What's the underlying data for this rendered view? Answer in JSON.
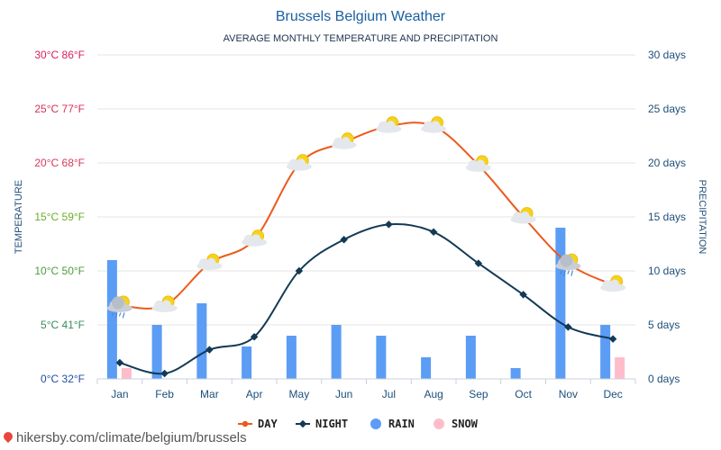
{
  "chart_data": {
    "type": "bar+line",
    "title": "Brussels Belgium Weather",
    "subtitle": "AVERAGE MONTHLY TEMPERATURE AND PRECIPITATION",
    "left_axis_title": "TEMPERATURE",
    "right_axis_title": "PRECIPITATION",
    "categories": [
      "Jan",
      "Feb",
      "Mar",
      "Apr",
      "May",
      "Jun",
      "Jul",
      "Aug",
      "Sep",
      "Oct",
      "Nov",
      "Dec"
    ],
    "left_axis": {
      "range": [
        0,
        30
      ],
      "ticks": [
        {
          "value": 0,
          "label": "0°C 32°F",
          "color": "#1f4ea3"
        },
        {
          "value": 5,
          "label": "5°C 41°F",
          "color": "#3a8c5a"
        },
        {
          "value": 10,
          "label": "10°C 50°F",
          "color": "#4a9e3a"
        },
        {
          "value": 15,
          "label": "15°C 59°F",
          "color": "#6aae2a"
        },
        {
          "value": 20,
          "label": "20°C 68°F",
          "color": "#d83a5a"
        },
        {
          "value": 25,
          "label": "25°C 77°F",
          "color": "#d8305a"
        },
        {
          "value": 30,
          "label": "30°C 86°F",
          "color": "#d82060"
        }
      ]
    },
    "right_axis": {
      "range": [
        0,
        30
      ],
      "ticks": [
        {
          "value": 0,
          "label": "0 days"
        },
        {
          "value": 5,
          "label": "5 days"
        },
        {
          "value": 10,
          "label": "10 days"
        },
        {
          "value": 15,
          "label": "15 days"
        },
        {
          "value": 20,
          "label": "20 days"
        },
        {
          "value": 25,
          "label": "25 days"
        },
        {
          "value": 30,
          "label": "30 days"
        }
      ]
    },
    "series": [
      {
        "name": "DAY",
        "kind": "line",
        "axis": "left",
        "color": "#ec5a1c",
        "values": [
          6.8,
          6.8,
          10.7,
          12.9,
          19.9,
          21.9,
          23.4,
          23.4,
          19.8,
          15.0,
          10.7,
          8.7
        ]
      },
      {
        "name": "NIGHT",
        "kind": "line",
        "axis": "left",
        "color": "#123a55",
        "values": [
          1.5,
          0.5,
          2.7,
          3.9,
          10.0,
          12.9,
          14.3,
          13.6,
          10.7,
          7.8,
          4.8,
          3.7
        ]
      },
      {
        "name": "RAIN",
        "kind": "bar",
        "axis": "right",
        "color": "#5b9cf5",
        "values": [
          11,
          5,
          7,
          3,
          4,
          5,
          4,
          2,
          4,
          1,
          14,
          5
        ]
      },
      {
        "name": "SNOW",
        "kind": "bar",
        "axis": "right",
        "color": "#ffbccb",
        "values": [
          1,
          0,
          0,
          0,
          0,
          0,
          0,
          0,
          0,
          0,
          0,
          2
        ]
      }
    ],
    "weather_icons": [
      "cloud-sun-rain",
      "cloud-sun",
      "cloud-sun",
      "cloud-sun",
      "cloud-sun",
      "cloud-sun",
      "cloud-sun",
      "cloud-sun",
      "cloud-sun",
      "cloud-sun",
      "cloud-sun-rain",
      "cloud-sun"
    ],
    "grid": true,
    "legend_position": "bottom-center"
  },
  "footer": {
    "url": "hikersby.com/climate/belgium/brussels"
  }
}
